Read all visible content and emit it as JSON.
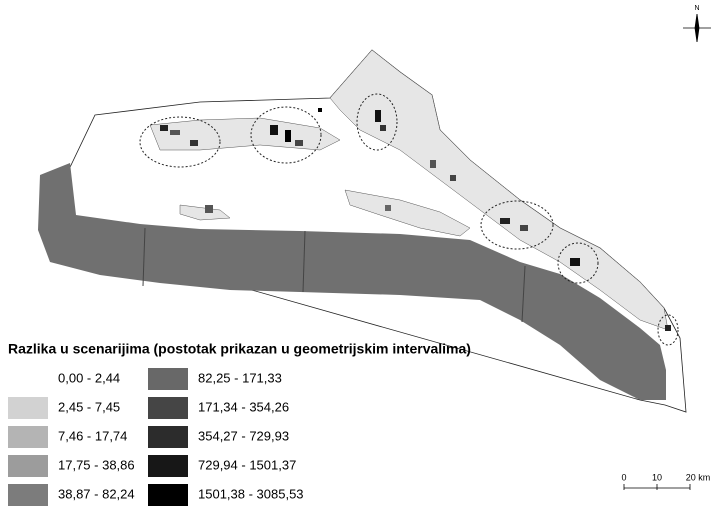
{
  "legend": {
    "title": "Razlika u scenarijima (postotak prikazan u geometrijskim intervalima)",
    "items": [
      {
        "label": "0,00 - 2,44",
        "color": "#ffffff"
      },
      {
        "label": "2,45 - 7,45",
        "color": "#d2d2d2"
      },
      {
        "label": "7,46 - 17,74",
        "color": "#b4b4b4"
      },
      {
        "label": "17,75 - 38,86",
        "color": "#9c9c9c"
      },
      {
        "label": "38,87 - 82,24",
        "color": "#7c7c7c"
      },
      {
        "label": "82,25 - 171,33",
        "color": "#686868"
      },
      {
        "label": "171,34 - 354,26",
        "color": "#454545"
      },
      {
        "label": "354,27 - 729,93",
        "color": "#2c2c2c"
      },
      {
        "label": "729,94 - 1501,37",
        "color": "#171717"
      },
      {
        "label": "1501,38 - 3085,53",
        "color": "#000000"
      }
    ]
  },
  "north": "N",
  "scale_bar": {
    "labels": [
      "0",
      "10",
      "20 km"
    ]
  }
}
